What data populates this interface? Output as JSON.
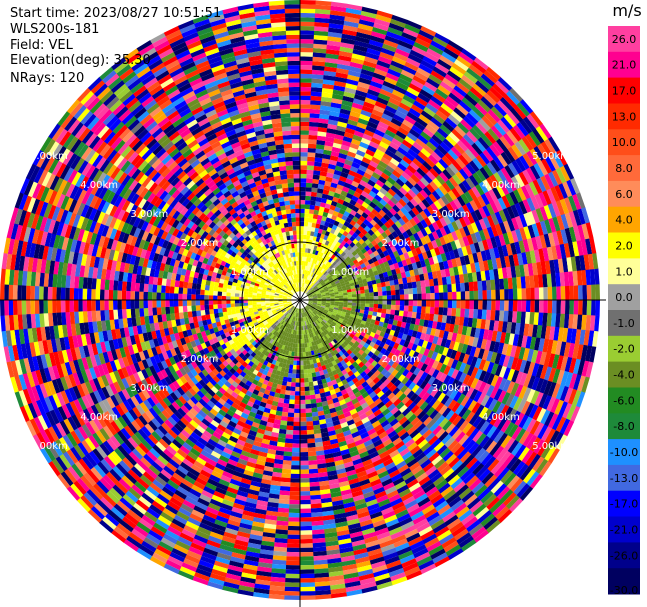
{
  "info": {
    "start_time": "Start time: 2023/08/27 10:51:51",
    "instrument": "WLS200s-181",
    "field": "Field: VEL",
    "elevation": "Elevation(deg): 35.30",
    "nrays": "NRays: 120"
  },
  "chart_data": {
    "type": "heatmap",
    "projection": "polar-ppi",
    "field": "VEL",
    "units": "m/s",
    "n_rays": 120,
    "range_rings_km": [
      1.0,
      2.0,
      3.0,
      4.0,
      5.0
    ],
    "ring_labels": [
      "1.00km",
      "2.00km",
      "3.00km",
      "4.00km",
      "5.00km"
    ],
    "inner_pattern": "near range: mostly +1 to +4 m/s (yellow) to the west/north, mostly -2 to -4 m/s (green) to the east/south",
    "outer_pattern": "beyond ~1.2 km: noisy values spanning full -30 to +30 m/s range",
    "colorbar": {
      "unit_label": "m/s",
      "ticks": [
        "26.0",
        "21.0",
        "17.0",
        "13.0",
        "10.0",
        "8.0",
        "6.0",
        "4.0",
        "2.0",
        "1.0",
        "0.0",
        "-1.0",
        "-2.0",
        "-4.0",
        "-6.0",
        "-8.0",
        "-10.0",
        "-13.0",
        "-17.0",
        "-21.0",
        "-26.0",
        "-30.0"
      ],
      "bins": [
        {
          "min": 26,
          "max": 30,
          "color": "#ff3fa0"
        },
        {
          "min": 21,
          "max": 26,
          "color": "#ff0090"
        },
        {
          "min": 17,
          "max": 21,
          "color": "#ff0000"
        },
        {
          "min": 13,
          "max": 17,
          "color": "#ff2a00"
        },
        {
          "min": 10,
          "max": 13,
          "color": "#ff4e1a"
        },
        {
          "min": 8,
          "max": 10,
          "color": "#ff6a3a"
        },
        {
          "min": 6,
          "max": 8,
          "color": "#ff8c5a"
        },
        {
          "min": 4,
          "max": 6,
          "color": "#ffa500"
        },
        {
          "min": 2,
          "max": 4,
          "color": "#ffff00"
        },
        {
          "min": 1,
          "max": 2,
          "color": "#ffff99"
        },
        {
          "min": 0,
          "max": 1,
          "color": "#a0a0a0"
        },
        {
          "min": -1,
          "max": 0,
          "color": "#707070"
        },
        {
          "min": -2,
          "max": -1,
          "color": "#9acd32"
        },
        {
          "min": -4,
          "max": -2,
          "color": "#6b8e23"
        },
        {
          "min": -6,
          "max": -4,
          "color": "#228b22"
        },
        {
          "min": -8,
          "max": -6,
          "color": "#1e8a3a"
        },
        {
          "min": -10,
          "max": -8,
          "color": "#1e90ff"
        },
        {
          "min": -13,
          "max": -10,
          "color": "#4169e1"
        },
        {
          "min": -17,
          "max": -13,
          "color": "#0000ff"
        },
        {
          "min": -21,
          "max": -17,
          "color": "#0000cd"
        },
        {
          "min": -26,
          "max": -21,
          "color": "#00008b"
        },
        {
          "min": -30,
          "max": -26,
          "color": "#000060"
        }
      ]
    }
  }
}
